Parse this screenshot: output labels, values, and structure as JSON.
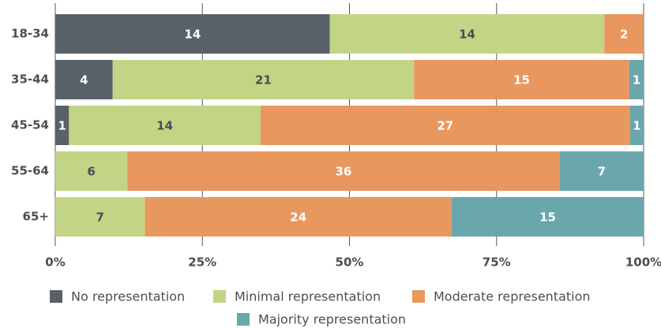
{
  "chart_data": {
    "type": "bar",
    "orientation": "horizontal",
    "stacked": "percent",
    "categories": [
      "18-34",
      "35-44",
      "45-54",
      "55-64",
      "65+"
    ],
    "series": [
      {
        "name": "No representation",
        "color": "#596168",
        "label_color": "#ffffff",
        "values": [
          14,
          4,
          1,
          0,
          0
        ]
      },
      {
        "name": "Minimal representation",
        "color": "#c2d584",
        "label_color": "#4a4f55",
        "values": [
          14,
          21,
          14,
          6,
          7
        ]
      },
      {
        "name": "Moderate representation",
        "color": "#e8975f",
        "label_color": "#ffffff",
        "values": [
          2,
          15,
          27,
          36,
          24
        ]
      },
      {
        "name": "Majority representation",
        "color": "#6aa6ab",
        "label_color": "#ffffff",
        "values": [
          0,
          1,
          1,
          7,
          15
        ]
      }
    ],
    "xlim": [
      0,
      100
    ],
    "xticks": [
      {
        "value": 0,
        "label": "0%"
      },
      {
        "value": 25,
        "label": "25%"
      },
      {
        "value": 50,
        "label": "50%"
      },
      {
        "value": 75,
        "label": "75%"
      },
      {
        "value": 100,
        "label": "100%"
      }
    ],
    "grid": true,
    "legend": "bottom"
  }
}
